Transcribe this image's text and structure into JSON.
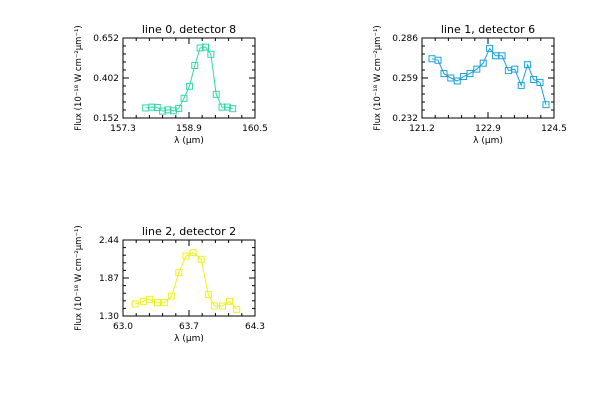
{
  "chart_data": [
    {
      "type": "line",
      "title": "line 0, detector 8",
      "xlabel": "λ (μm)",
      "ylabel": "Flux (10⁻¹⁸ W cm⁻²μm⁻¹)",
      "xlim": [
        157.3,
        160.5
      ],
      "ylim": [
        0.152,
        0.652
      ],
      "xticks": [
        "157.3",
        "158.9",
        "160.5"
      ],
      "yticks": [
        "0.152",
        "0.402",
        "0.652"
      ],
      "grid": false,
      "legend": "none",
      "series": [
        {
          "color": "#2fd8a8",
          "marker": "square",
          "x": [
            157.85,
            158.0,
            158.13,
            158.26,
            158.39,
            158.52,
            158.65,
            158.78,
            158.91,
            159.04,
            159.17,
            159.3,
            159.43,
            159.56,
            159.7,
            159.83,
            159.96
          ],
          "y": [
            0.215,
            0.22,
            0.218,
            0.195,
            0.203,
            0.197,
            0.212,
            0.275,
            0.35,
            0.48,
            0.59,
            0.595,
            0.55,
            0.3,
            0.22,
            0.22,
            0.21
          ]
        }
      ]
    },
    {
      "type": "line",
      "title": "line 1, detector 6",
      "xlabel": "λ (μm)",
      "ylabel": "Flux (10⁻¹⁸ W cm⁻²μm⁻¹)",
      "xlim": [
        121.2,
        124.5
      ],
      "ylim": [
        0.232,
        0.286
      ],
      "xticks": [
        "121.2",
        "122.9",
        "124.5"
      ],
      "yticks": [
        "0.232",
        "0.259",
        "0.286"
      ],
      "grid": false,
      "legend": "none",
      "series": [
        {
          "color": "#1ba0d8",
          "marker": "square",
          "x": [
            121.45,
            121.6,
            121.75,
            121.92,
            122.08,
            122.24,
            122.4,
            122.57,
            122.73,
            122.89,
            123.04,
            123.2,
            123.36,
            123.52,
            123.68,
            123.84,
            123.99,
            124.15,
            124.3
          ],
          "y": [
            0.272,
            0.271,
            0.262,
            0.259,
            0.257,
            0.26,
            0.262,
            0.265,
            0.269,
            0.279,
            0.274,
            0.274,
            0.264,
            0.265,
            0.254,
            0.268,
            0.258,
            0.256,
            0.241
          ]
        }
      ]
    },
    {
      "type": "line",
      "title": "line 2, detector 2",
      "xlabel": "λ (μm)",
      "ylabel": "Flux (10⁻¹⁸ W cm⁻²μm⁻¹)",
      "xlim": [
        63.0,
        64.3
      ],
      "ylim": [
        1.3,
        2.44
      ],
      "xticks": [
        "63.0",
        "63.7",
        "64.3"
      ],
      "yticks": [
        "1.30",
        "1.87",
        "2.44"
      ],
      "grid": false,
      "legend": "none",
      "series": [
        {
          "color": "#f0f018",
          "marker": "square",
          "x": [
            63.12,
            63.2,
            63.26,
            63.34,
            63.41,
            63.48,
            63.55,
            63.62,
            63.69,
            63.77,
            63.84,
            63.9,
            63.98,
            64.05,
            64.12
          ],
          "y": [
            1.48,
            1.52,
            1.55,
            1.5,
            1.5,
            1.6,
            1.95,
            2.2,
            2.25,
            2.15,
            1.62,
            1.45,
            1.45,
            1.52,
            1.4
          ]
        }
      ]
    }
  ]
}
